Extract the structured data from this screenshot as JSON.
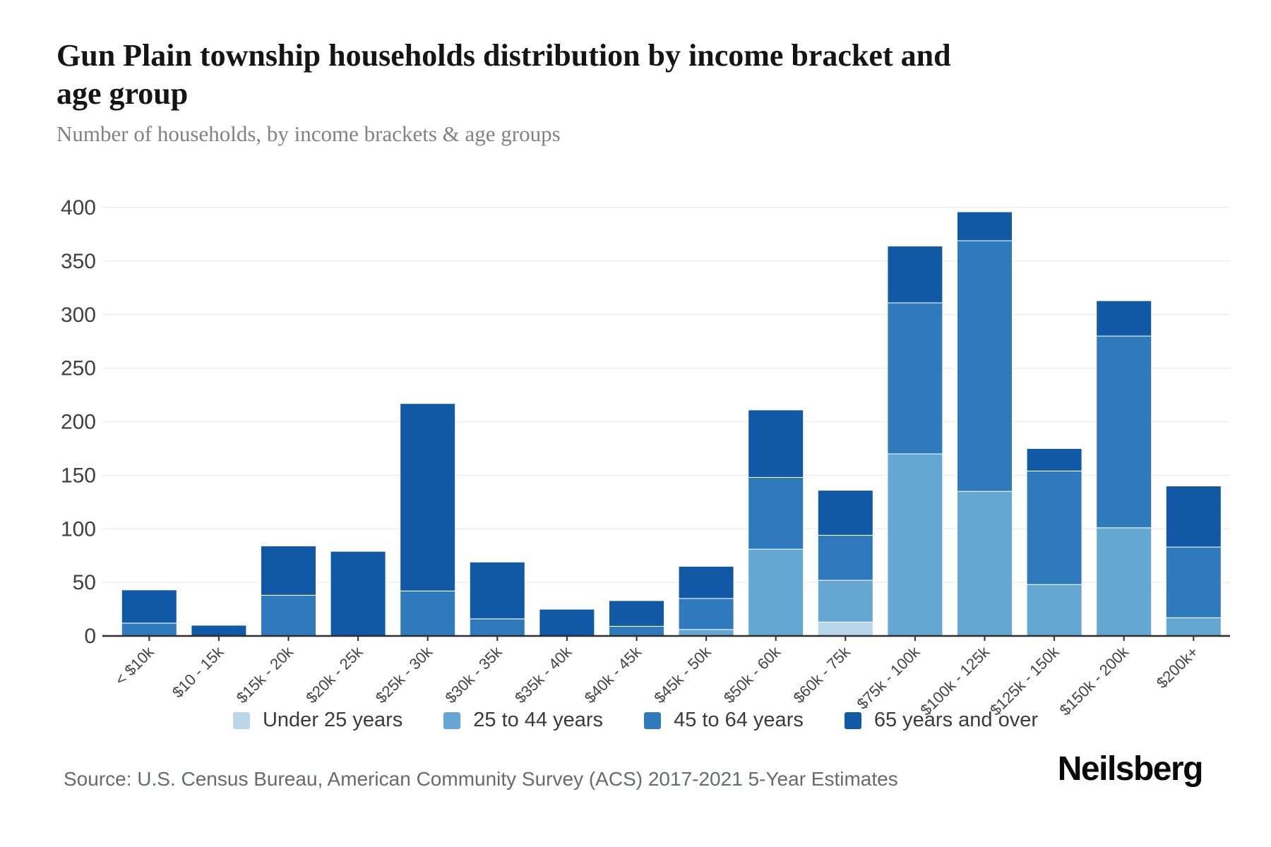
{
  "header": {
    "title_line1": "Gun Plain township households distribution by income bracket and",
    "title_line2": "age group",
    "subtitle": "Number of households, by income brackets & age groups"
  },
  "chart_data": {
    "type": "bar",
    "stacked": true,
    "title": "Gun Plain township households distribution by income bracket and age group",
    "xlabel": "",
    "ylabel": "Number of households",
    "ylim": [
      0,
      400
    ],
    "ytick_step": 50,
    "grid": "horizontal-only",
    "legend_position": "bottom",
    "categories": [
      "< $10k",
      "$10 - 15k",
      "$15k - 20k",
      "$20k - 25k",
      "$25k - 30k",
      "$30k - 35k",
      "$35k - 40k",
      "$40k - 45k",
      "$45k - 50k",
      "$50k - 60k",
      "$60k - 75k",
      "$75k - 100k",
      "$100k - 125k",
      "$125k - 150k",
      "$150k - 200k",
      "$200k+"
    ],
    "series": [
      {
        "name": "Under 25 years",
        "color": "#b9d6ea",
        "values": [
          0,
          0,
          0,
          0,
          0,
          0,
          0,
          0,
          0,
          0,
          13,
          0,
          0,
          0,
          0,
          0
        ]
      },
      {
        "name": "25 to 44 years",
        "color": "#64a7d3",
        "values": [
          0,
          0,
          0,
          0,
          0,
          0,
          0,
          0,
          6,
          81,
          39,
          170,
          135,
          48,
          101,
          17
        ]
      },
      {
        "name": "45 to 64 years",
        "color": "#2f7abc",
        "values": [
          12,
          0,
          38,
          0,
          42,
          16,
          0,
          9,
          29,
          67,
          42,
          141,
          234,
          106,
          179,
          66
        ]
      },
      {
        "name": "65 years and over",
        "color": "#1158a6",
        "values": [
          31,
          10,
          46,
          79,
          175,
          53,
          25,
          24,
          30,
          63,
          42,
          53,
          27,
          21,
          33,
          57
        ]
      }
    ],
    "totals": [
      43,
      10,
      84,
      79,
      217,
      69,
      25,
      33,
      65,
      211,
      136,
      364,
      396,
      175,
      313,
      140
    ]
  },
  "style": {
    "grid_color": "#efefef",
    "axis_color": "#2f2f2f",
    "y_label_color": "#404040",
    "x_label_color": "#444444",
    "segment_stroke": "#ffffff"
  },
  "footer": {
    "source": "Source: U.S. Census Bureau, American Community Survey (ACS) 2017-2021 5-Year Estimates",
    "brand": "Neilsberg"
  }
}
